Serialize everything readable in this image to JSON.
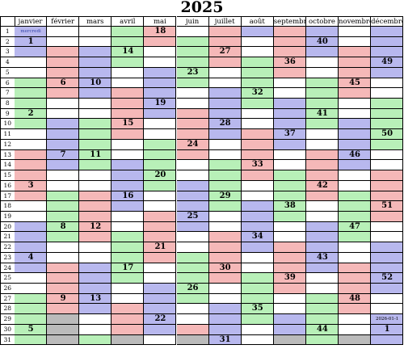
{
  "title": "2025",
  "colors": {
    "blue": "#b8b8ee",
    "green": "#b8f0b8",
    "red": "#f5b8b8",
    "empty": "#bbbbbb"
  },
  "months": [
    {
      "name": "janvier",
      "days": 31,
      "start_wd": 2
    },
    {
      "name": "février",
      "days": 28,
      "start_wd": 5
    },
    {
      "name": "mars",
      "days": 31,
      "start_wd": 5
    },
    {
      "name": "avril",
      "days": 30,
      "start_wd": 1
    },
    {
      "name": "mai",
      "days": 31,
      "start_wd": 3
    },
    {
      "name": "juin",
      "days": 30,
      "start_wd": 6
    },
    {
      "name": "juillet",
      "days": 31,
      "start_wd": 1
    },
    {
      "name": "août",
      "days": 31,
      "start_wd": 4
    },
    {
      "name": "septembre",
      "days": 30,
      "start_wd": 0
    },
    {
      "name": "octobre",
      "days": 31,
      "start_wd": 2
    },
    {
      "name": "novembre",
      "days": 30,
      "start_wd": 5
    },
    {
      "name": "décembre",
      "days": 31,
      "start_wd": 0
    }
  ],
  "week_numbers": [
    {
      "month": 0,
      "day": 2,
      "label": "1"
    },
    {
      "month": 0,
      "day": 9,
      "label": "2"
    },
    {
      "month": 0,
      "day": 16,
      "label": "3"
    },
    {
      "month": 0,
      "day": 23,
      "label": "4"
    },
    {
      "month": 0,
      "day": 30,
      "label": "5"
    },
    {
      "month": 1,
      "day": 6,
      "label": "6"
    },
    {
      "month": 1,
      "day": 13,
      "label": "7"
    },
    {
      "month": 1,
      "day": 20,
      "label": "8"
    },
    {
      "month": 1,
      "day": 27,
      "label": "9"
    },
    {
      "month": 2,
      "day": 6,
      "label": "10"
    },
    {
      "month": 2,
      "day": 13,
      "label": "11"
    },
    {
      "month": 2,
      "day": 20,
      "label": "12"
    },
    {
      "month": 2,
      "day": 27,
      "label": "13"
    },
    {
      "month": 3,
      "day": 3,
      "label": "14"
    },
    {
      "month": 3,
      "day": 10,
      "label": "15"
    },
    {
      "month": 3,
      "day": 17,
      "label": "16"
    },
    {
      "month": 3,
      "day": 24,
      "label": "17"
    },
    {
      "month": 4,
      "day": 1,
      "label": "18"
    },
    {
      "month": 4,
      "day": 8,
      "label": "19"
    },
    {
      "month": 4,
      "day": 15,
      "label": "20"
    },
    {
      "month": 4,
      "day": 22,
      "label": "21"
    },
    {
      "month": 4,
      "day": 29,
      "label": "22"
    },
    {
      "month": 5,
      "day": 5,
      "label": "23"
    },
    {
      "month": 5,
      "day": 12,
      "label": "24"
    },
    {
      "month": 5,
      "day": 19,
      "label": "25"
    },
    {
      "month": 5,
      "day": 26,
      "label": "26"
    },
    {
      "month": 6,
      "day": 3,
      "label": "27"
    },
    {
      "month": 6,
      "day": 10,
      "label": "28"
    },
    {
      "month": 6,
      "day": 17,
      "label": "29"
    },
    {
      "month": 6,
      "day": 24,
      "label": "30"
    },
    {
      "month": 6,
      "day": 31,
      "label": "31"
    },
    {
      "month": 7,
      "day": 7,
      "label": "32"
    },
    {
      "month": 7,
      "day": 14,
      "label": "33"
    },
    {
      "month": 7,
      "day": 21,
      "label": "34"
    },
    {
      "month": 7,
      "day": 28,
      "label": "35"
    },
    {
      "month": 8,
      "day": 4,
      "label": "36"
    },
    {
      "month": 8,
      "day": 11,
      "label": "37"
    },
    {
      "month": 8,
      "day": 18,
      "label": "38"
    },
    {
      "month": 8,
      "day": 25,
      "label": "39"
    },
    {
      "month": 9,
      "day": 2,
      "label": "40"
    },
    {
      "month": 9,
      "day": 9,
      "label": "41"
    },
    {
      "month": 9,
      "day": 16,
      "label": "42"
    },
    {
      "month": 9,
      "day": 23,
      "label": "43"
    },
    {
      "month": 9,
      "day": 30,
      "label": "44"
    },
    {
      "month": 10,
      "day": 6,
      "label": "45"
    },
    {
      "month": 10,
      "day": 13,
      "label": "46"
    },
    {
      "month": 10,
      "day": 20,
      "label": "47"
    },
    {
      "month": 10,
      "day": 27,
      "label": "48"
    },
    {
      "month": 11,
      "day": 4,
      "label": "49"
    },
    {
      "month": 11,
      "day": 11,
      "label": "50"
    },
    {
      "month": 11,
      "day": 18,
      "label": "51"
    },
    {
      "month": 11,
      "day": 25,
      "label": "52"
    },
    {
      "month": 11,
      "day": 30,
      "label": "1"
    }
  ],
  "notes": [
    {
      "month": 0,
      "day": 1,
      "text": "mercredi"
    },
    {
      "month": 11,
      "day": 29,
      "text": "2026-01-1"
    }
  ]
}
